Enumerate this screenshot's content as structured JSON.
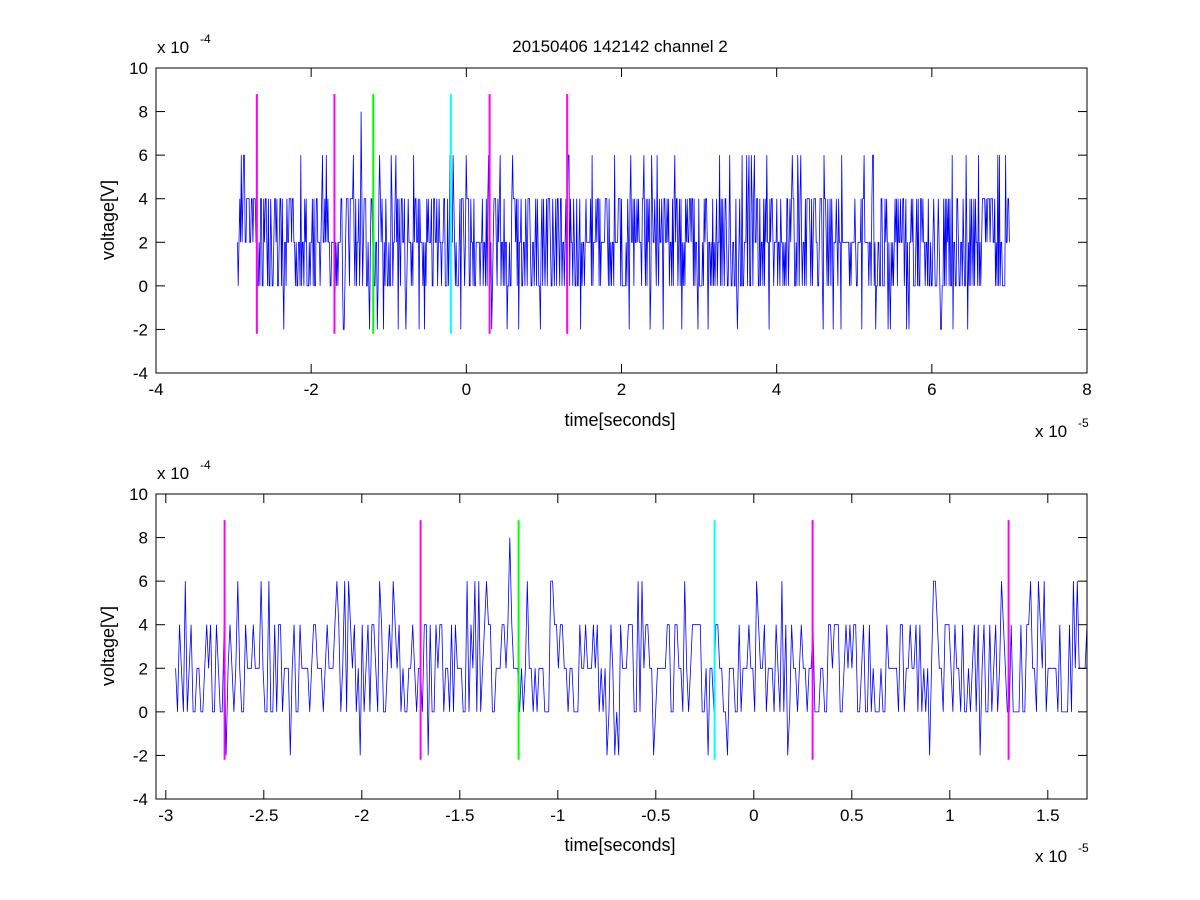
{
  "figure_title": "20150406 142142 channel 2",
  "chart_data": [
    {
      "type": "line",
      "title": "20150406 142142 channel 2",
      "xlabel": "time[seconds]",
      "ylabel": "voltage[V]",
      "x_exponent_label": "x 10",
      "x_exponent": "-5",
      "y_exponent_label": "x 10",
      "y_exponent": "-4",
      "xlim": [
        -4,
        8
      ],
      "ylim": [
        -4,
        10
      ],
      "x_ticks": [
        -4,
        -2,
        0,
        2,
        4,
        6,
        8
      ],
      "x_tick_labels": [
        "-4",
        "-2",
        "0",
        "2",
        "4",
        "6",
        "8"
      ],
      "y_ticks": [
        -4,
        -2,
        0,
        2,
        4,
        6,
        8,
        10
      ],
      "y_tick_labels": [
        "-4",
        "-2",
        "0",
        "2",
        "4",
        "6",
        "8",
        "10"
      ],
      "grid": false,
      "series": [
        {
          "color": "#0000ff",
          "x_range": [
            -2.95,
            7.0
          ],
          "baseline": 2,
          "levels": [
            -2,
            0,
            2,
            4,
            6,
            8
          ],
          "samples": 1000,
          "style": "quantized noise trace"
        }
      ],
      "markers": [
        {
          "x": -2.7,
          "color": "#ff00ff",
          "y_range": [
            -2.2,
            8.8
          ]
        },
        {
          "x": -1.7,
          "color": "#ff00ff",
          "y_range": [
            -2.2,
            8.8
          ]
        },
        {
          "x": -1.2,
          "color": "#00ff00",
          "y_range": [
            -2.2,
            8.8
          ]
        },
        {
          "x": -0.2,
          "color": "#00ffff",
          "y_range": [
            -2.2,
            8.8
          ]
        },
        {
          "x": 0.3,
          "color": "#ff00ff",
          "y_range": [
            -2.2,
            8.8
          ]
        },
        {
          "x": 1.3,
          "color": "#ff00ff",
          "y_range": [
            -2.2,
            8.8
          ]
        }
      ]
    },
    {
      "type": "line",
      "title": "",
      "xlabel": "time[seconds]",
      "ylabel": "voltage[V]",
      "x_exponent_label": "x 10",
      "x_exponent": "-5",
      "y_exponent_label": "x 10",
      "y_exponent": "-4",
      "xlim": [
        -3.05,
        1.7
      ],
      "ylim": [
        -4,
        10
      ],
      "x_ticks": [
        -3,
        -2.5,
        -2,
        -1.5,
        -1,
        -0.5,
        0,
        0.5,
        1,
        1.5
      ],
      "x_tick_labels": [
        "-3",
        "-2.5",
        "-2",
        "-1.5",
        "-1",
        "-0.5",
        "0",
        "0.5",
        "1",
        "1.5"
      ],
      "y_ticks": [
        -4,
        -2,
        0,
        2,
        4,
        6,
        8,
        10
      ],
      "y_tick_labels": [
        "-4",
        "-2",
        "0",
        "2",
        "4",
        "6",
        "8",
        "10"
      ],
      "grid": false,
      "series": [
        {
          "color": "#0000ff",
          "x_range": [
            -2.95,
            1.7
          ],
          "baseline": 2,
          "levels": [
            -2,
            0,
            2,
            4,
            6,
            8
          ],
          "samples": 470,
          "style": "quantized noise trace"
        }
      ],
      "markers": [
        {
          "x": -2.7,
          "color": "#ff00ff",
          "y_range": [
            -2.2,
            8.8
          ]
        },
        {
          "x": -1.7,
          "color": "#ff00ff",
          "y_range": [
            -2.2,
            8.8
          ]
        },
        {
          "x": -1.2,
          "color": "#00ff00",
          "y_range": [
            -2.2,
            8.8
          ]
        },
        {
          "x": -0.2,
          "color": "#00ffff",
          "y_range": [
            -2.2,
            8.8
          ]
        },
        {
          "x": 0.3,
          "color": "#ff00ff",
          "y_range": [
            -2.2,
            8.8
          ]
        },
        {
          "x": 1.3,
          "color": "#ff00ff",
          "y_range": [
            -2.2,
            8.8
          ]
        }
      ]
    }
  ]
}
